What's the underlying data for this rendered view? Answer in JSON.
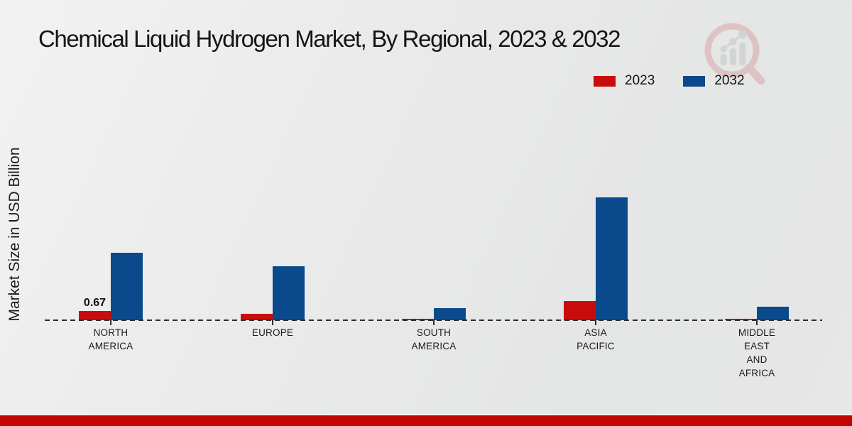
{
  "title": "Chemical Liquid Hydrogen Market, By Regional, 2023 & 2032",
  "y_axis_label": "Market Size in USD Billion",
  "legend": {
    "items": [
      {
        "label": "2023",
        "color": "#c90c0c"
      },
      {
        "label": "2032",
        "color": "#0a4a8c"
      }
    ]
  },
  "logo": {
    "name": "market-research-magnifier-logo",
    "ring_color": "#d9a7a9",
    "chart_color": "#c3c5c7"
  },
  "footer": {
    "strip_color": "#c20404"
  },
  "chart_data": {
    "type": "bar",
    "title": "Chemical Liquid Hydrogen Market, By Regional, 2023 & 2032",
    "xlabel": "",
    "ylabel": "Market Size in USD Billion",
    "ylim": [
      0,
      10
    ],
    "grid": false,
    "legend_position": "top-right",
    "baseline_value": 0,
    "categories": [
      "NORTH AMERICA",
      "EUROPE",
      "SOUTH AMERICA",
      "ASIA PACIFIC",
      "MIDDLE EAST AND AFRICA"
    ],
    "category_label_lines": [
      [
        "NORTH",
        "AMERICA"
      ],
      [
        "EUROPE"
      ],
      [
        "SOUTH",
        "AMERICA"
      ],
      [
        "ASIA",
        "PACIFIC"
      ],
      [
        "MIDDLE",
        "EAST",
        "AND",
        "AFRICA"
      ]
    ],
    "series": [
      {
        "name": "2023",
        "color": "#c90c0c",
        "values": [
          0.67,
          0.45,
          0.1,
          1.4,
          0.1
        ]
      },
      {
        "name": "2032",
        "color": "#0a4a8c",
        "values": [
          4.9,
          3.9,
          0.9,
          8.9,
          1.0
        ]
      }
    ],
    "annotations": [
      {
        "series_index": 0,
        "category_index": 0,
        "text": "0.67"
      }
    ]
  }
}
